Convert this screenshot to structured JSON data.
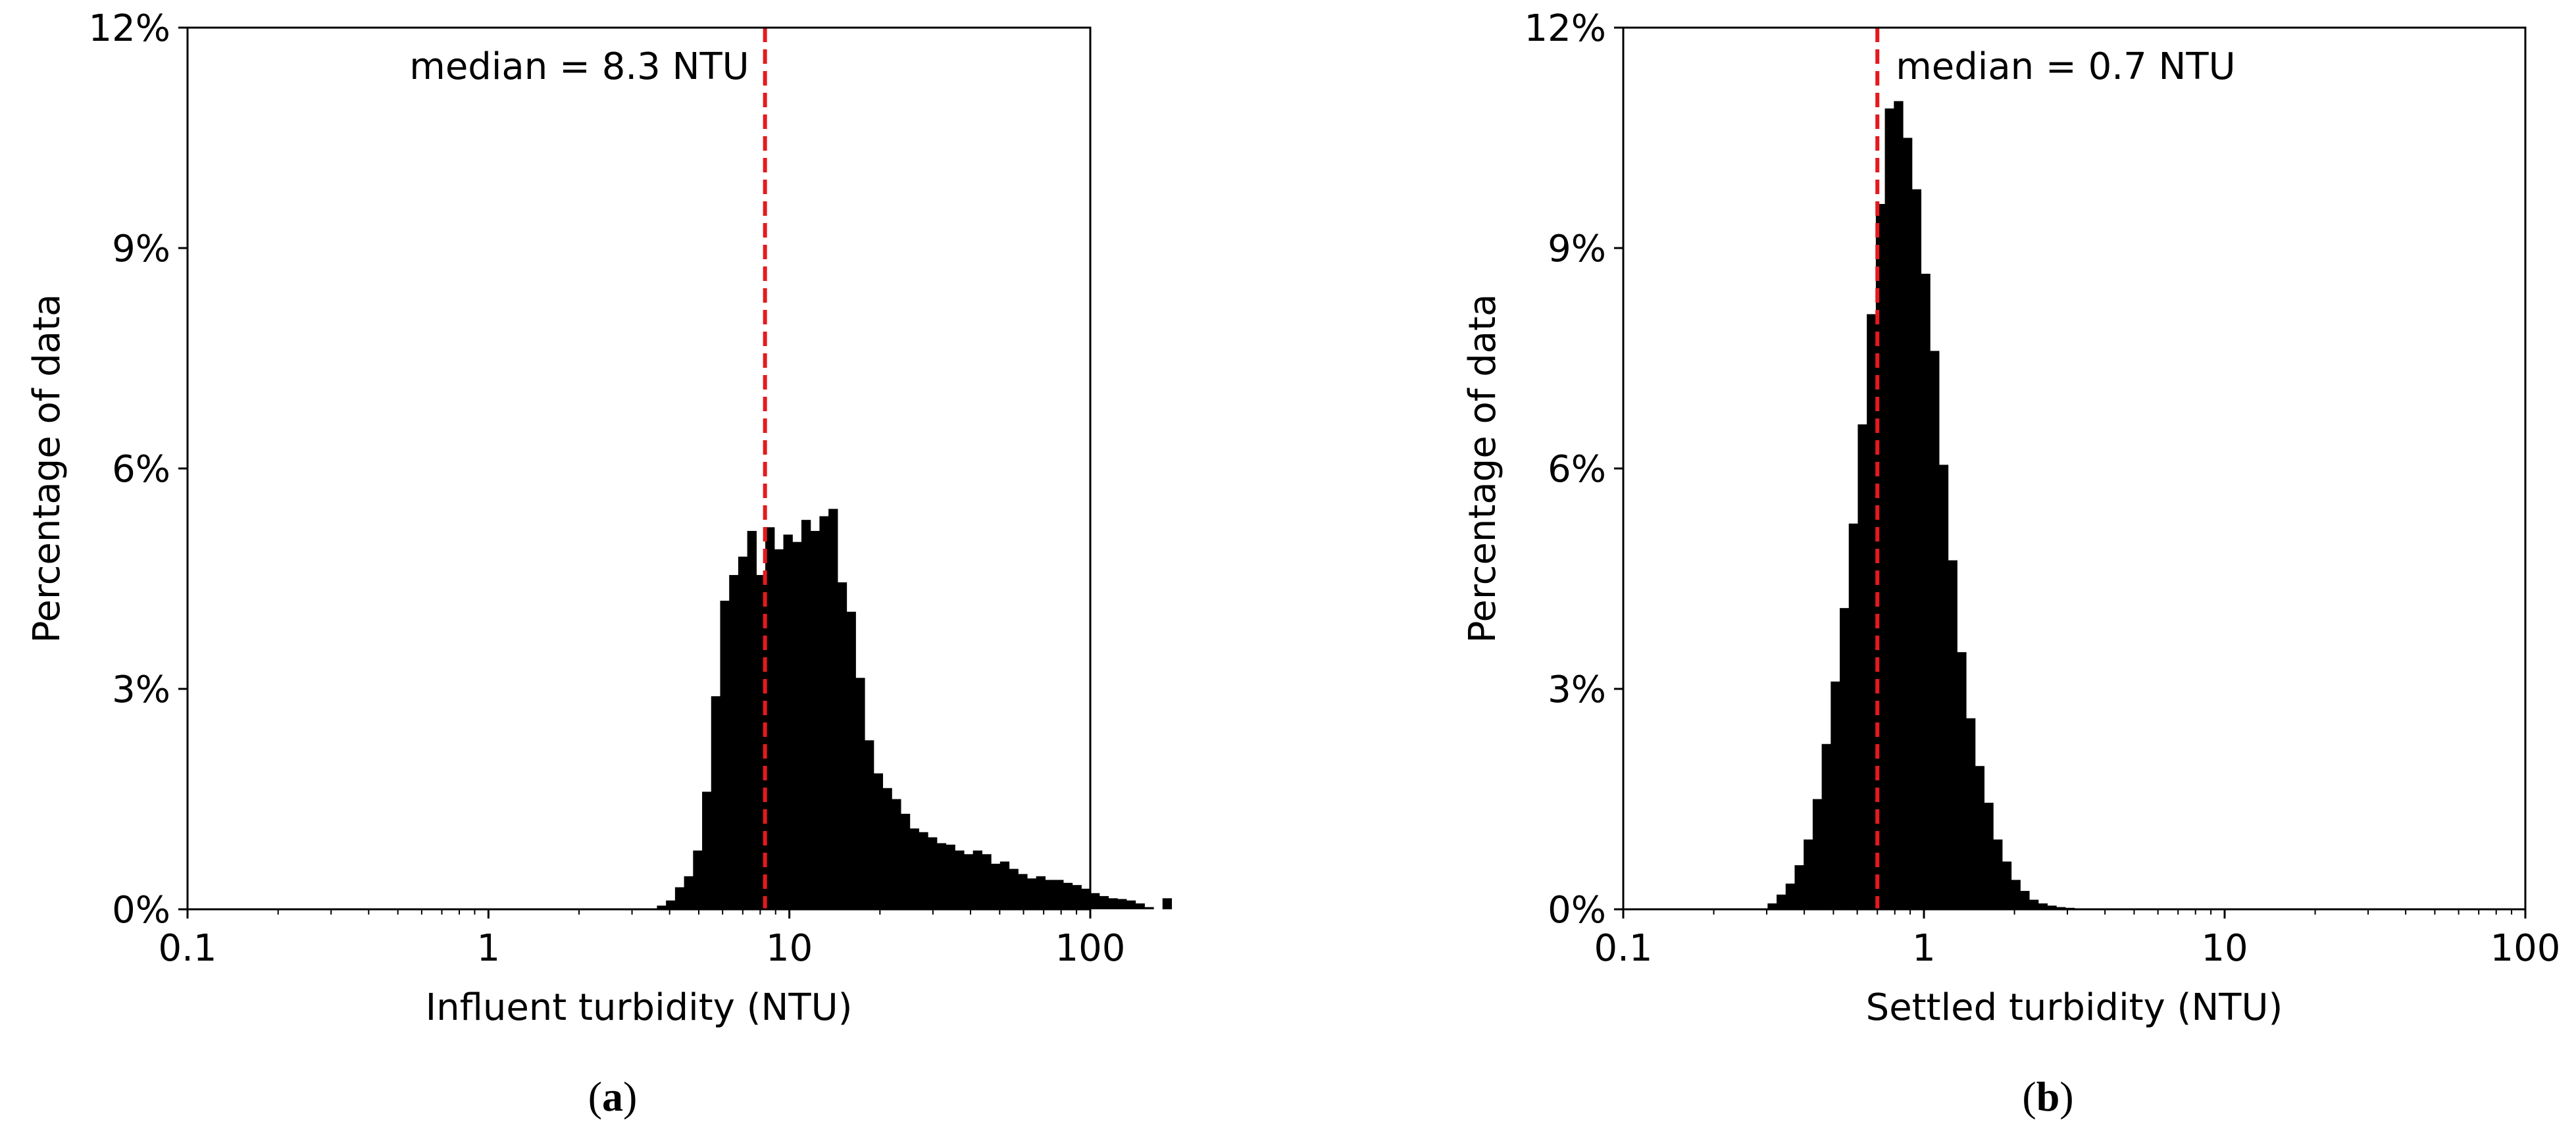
{
  "chart_data": [
    {
      "type": "bar",
      "caption_open": "(",
      "caption_letter": "a",
      "caption_close": ")",
      "xlabel": "Influent turbidity (NTU)",
      "ylabel": "Percentage of data",
      "x_scale": "log",
      "xlim": [
        0.1,
        100
      ],
      "ylim": [
        0,
        12
      ],
      "xticks": [
        0.1,
        1,
        10,
        100
      ],
      "xtick_labels": [
        "0.1",
        "1",
        "10",
        "100"
      ],
      "yticks": [
        0,
        3,
        6,
        9,
        12
      ],
      "ytick_labels": [
        "0%",
        "3%",
        "6%",
        "9%",
        "12%"
      ],
      "bin_log_width": 0.03,
      "bin_start_log": -1,
      "bin_pct": [
        0,
        0,
        0,
        0,
        0,
        0,
        0,
        0,
        0,
        0,
        0,
        0,
        0,
        0,
        0,
        0,
        0,
        0,
        0,
        0,
        0,
        0,
        0,
        0,
        0,
        0,
        0,
        0,
        0,
        0,
        0,
        0,
        0,
        0,
        0,
        0,
        0,
        0,
        0,
        0,
        0,
        0,
        0,
        0,
        0,
        0,
        0,
        0,
        0,
        0,
        0,
        0,
        0.05,
        0.12,
        0.3,
        0.45,
        0.8,
        1.6,
        2.9,
        4.2,
        4.55,
        4.8,
        5.15,
        4.55,
        5.2,
        4.9,
        5.1,
        5.0,
        5.3,
        5.15,
        5.35,
        5.45,
        4.45,
        4.05,
        3.15,
        2.3,
        1.85,
        1.65,
        1.5,
        1.3,
        1.1,
        1.05,
        0.98,
        0.9,
        0.88,
        0.8,
        0.75,
        0.8,
        0.75,
        0.62,
        0.65,
        0.55,
        0.48,
        0.42,
        0.45,
        0.4,
        0.4,
        0.36,
        0.33,
        0.28,
        0.22,
        0.18,
        0.15,
        0.14,
        0.12,
        0.08,
        0.03,
        0.0,
        0.15
      ],
      "median": 8.3,
      "median_label": "median = 8.3 NTU",
      "median_label_side": "left"
    },
    {
      "type": "bar",
      "caption_open": "(",
      "caption_letter": "b",
      "caption_close": ")",
      "xlabel": "Settled turbidity (NTU)",
      "ylabel": "Percentage of data",
      "x_scale": "log",
      "xlim": [
        0.1,
        100
      ],
      "ylim": [
        0,
        12
      ],
      "xticks": [
        0.1,
        1,
        10,
        100
      ],
      "xtick_labels": [
        "0.1",
        "1",
        "10",
        "100"
      ],
      "yticks": [
        0,
        3,
        6,
        9,
        12
      ],
      "ytick_labels": [
        "0%",
        "3%",
        "6%",
        "9%",
        "12%"
      ],
      "bin_log_width": 0.03,
      "bin_start_log": -0.52,
      "bin_pct": [
        0.08,
        0.2,
        0.35,
        0.6,
        0.95,
        1.5,
        2.25,
        3.1,
        4.1,
        5.25,
        6.6,
        8.1,
        9.6,
        10.9,
        11.0,
        10.5,
        9.8,
        8.65,
        7.6,
        6.05,
        4.75,
        3.5,
        2.6,
        1.95,
        1.45,
        0.95,
        0.65,
        0.4,
        0.25,
        0.13,
        0.08,
        0.05,
        0.03,
        0.02,
        0.01
      ],
      "median": 0.7,
      "median_label": "median = 0.7 NTU",
      "median_label_side": "right"
    }
  ],
  "colors": {
    "bars": "#000000",
    "median_line": "#e41a1c",
    "axes": "#000000"
  }
}
